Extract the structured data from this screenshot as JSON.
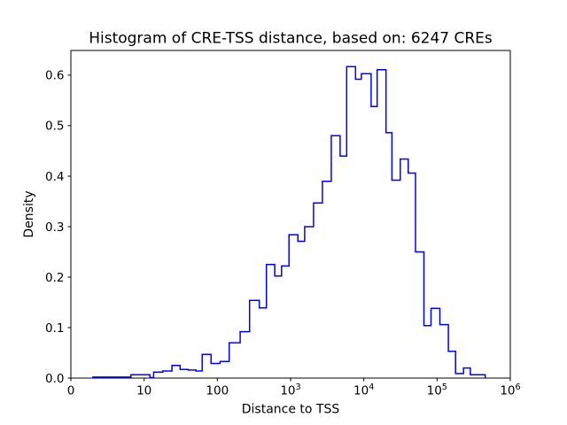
{
  "figure": {
    "title": "Histogram of CRE-TSS distance, based on: 6247 CREs",
    "x_axis_label": "Distance to TSS",
    "y_axis_label": "Density",
    "background_color": "#ffffff",
    "line_color": "#0000ff",
    "axis_color": "#000000"
  },
  "chart_data": {
    "type": "bar",
    "subtype": "step_histogram",
    "title": "Histogram of CRE-TSS distance, based on: 6247 CREs",
    "xlabel": "Distance to TSS",
    "ylabel": "Density",
    "x_scale": "symlog",
    "x_linthresh": 10,
    "xlim": [
      0,
      1000000
    ],
    "ylim": [
      0,
      0.649
    ],
    "grid": false,
    "legend": false,
    "x_ticks": [
      {
        "value": 0,
        "label": "0",
        "exponent": ""
      },
      {
        "value": 10,
        "label": "10",
        "exponent": ""
      },
      {
        "value": 100,
        "label": "100",
        "exponent": ""
      },
      {
        "value": 1000,
        "label": "10",
        "exponent": "3"
      },
      {
        "value": 10000,
        "label": "10",
        "exponent": "4"
      },
      {
        "value": 100000,
        "label": "10",
        "exponent": "5"
      },
      {
        "value": 1000000,
        "label": "10",
        "exponent": "6"
      }
    ],
    "y_ticks": [
      {
        "value": 0.0,
        "label": "0.0"
      },
      {
        "value": 0.1,
        "label": "0.1"
      },
      {
        "value": 0.2,
        "label": "0.2"
      },
      {
        "value": 0.3,
        "label": "0.3"
      },
      {
        "value": 0.4,
        "label": "0.4"
      },
      {
        "value": 0.5,
        "label": "0.5"
      },
      {
        "value": 0.6,
        "label": "0.6"
      }
    ],
    "bin_edges": [
      3,
      8.2,
      12,
      13.5,
      18,
      24,
      31,
      40,
      51,
      62,
      82,
      109,
      145,
      205,
      275,
      374,
      468,
      608,
      752,
      951,
      1258,
      1556,
      2055,
      2716,
      3589,
      4742,
      5834,
      7709,
      9267,
      12594,
      15205,
      20089,
      24210,
      31405,
      40365,
      50815,
      66069,
      82604,
      109144,
      142889,
      178649,
      229615,
      285102,
      454158
    ],
    "densities": [
      0.002,
      0.0065,
      0.001,
      0.012,
      0.014,
      0.025,
      0.017,
      0.016,
      0.014,
      0.047,
      0.029,
      0.033,
      0.07,
      0.092,
      0.154,
      0.139,
      0.225,
      0.202,
      0.222,
      0.284,
      0.271,
      0.3,
      0.347,
      0.39,
      0.48,
      0.44,
      0.617,
      0.592,
      0.603,
      0.538,
      0.611,
      0.486,
      0.392,
      0.434,
      0.406,
      0.25,
      0.104,
      0.138,
      0.106,
      0.053,
      0.009,
      0.02,
      0.0065
    ]
  }
}
